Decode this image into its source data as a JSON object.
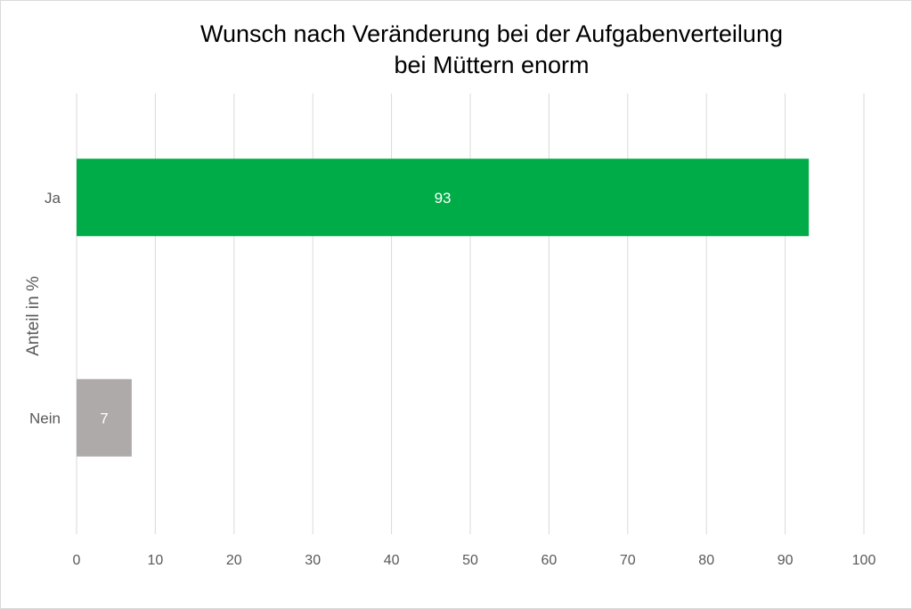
{
  "chart_data": {
    "type": "bar",
    "orientation": "horizontal",
    "title": [
      "Wunsch nach Veränderung bei der Aufgabenverteilung",
      "bei Müttern enorm"
    ],
    "xlabel": "",
    "ylabel": "Anteil in %",
    "categories": [
      "Ja",
      "Nein"
    ],
    "values": [
      93,
      7
    ],
    "data_labels": [
      "93",
      "7"
    ],
    "colors": [
      "#00AC47",
      "#AEAAAA"
    ],
    "xlim": [
      0,
      100
    ],
    "xticks": [
      0,
      10,
      20,
      30,
      40,
      50,
      60,
      70,
      80,
      90,
      100
    ],
    "grid": true,
    "legend": "none"
  }
}
